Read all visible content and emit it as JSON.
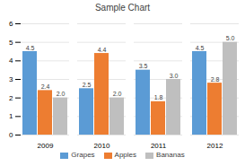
{
  "chart_data": {
    "type": "bar",
    "title": "Sample Chart",
    "categories": [
      "2009",
      "2010",
      "2011",
      "2012"
    ],
    "series": [
      {
        "name": "Grapes",
        "values": [
          4.5,
          2.5,
          3.5,
          4.5
        ],
        "color": "#5B9BD5"
      },
      {
        "name": "Apples",
        "values": [
          2.4,
          4.4,
          1.8,
          2.8
        ],
        "color": "#ED7D31"
      },
      {
        "name": "Bananas",
        "values": [
          2.0,
          2.0,
          3.0,
          5.0
        ],
        "value_labels": [
          "2.0",
          "2.0",
          "3.0",
          "5.0"
        ],
        "color": "#BFBFBF"
      }
    ],
    "ylim": [
      0,
      6
    ],
    "yticks": [
      0,
      1,
      2,
      3,
      4,
      5,
      6
    ],
    "grid": true,
    "data_labels": true,
    "legend": "bottom"
  }
}
